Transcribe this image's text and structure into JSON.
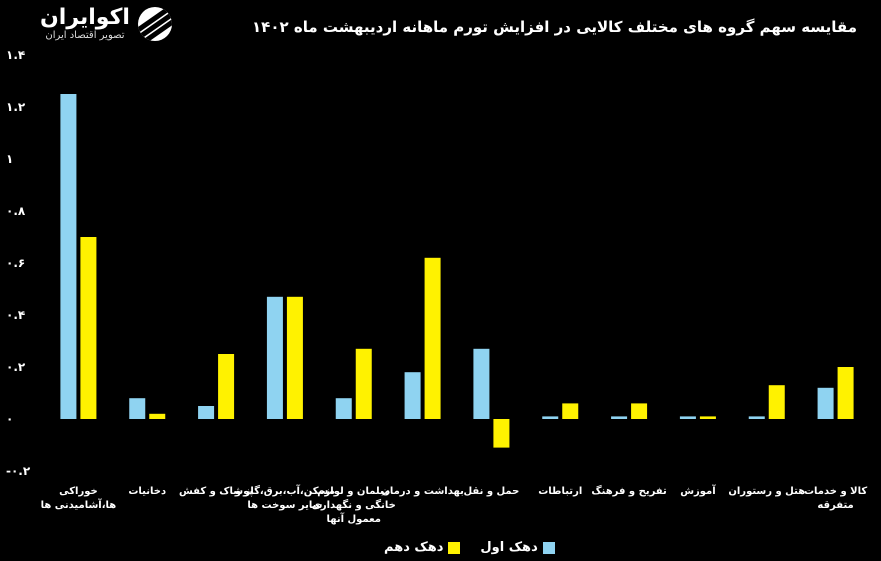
{
  "header": {
    "logo_name": "اکوایران",
    "logo_subtitle": "تصویر اقتصاد ایران",
    "logo_icon": "ecoiran-logo-icon"
  },
  "colors": {
    "series_1": "#8fd3f1",
    "series_2": "#fff200",
    "background": "#000000",
    "text": "#ffffff"
  },
  "chart_data": {
    "type": "bar",
    "title": "مقایسه سهم گروه های مختلف کالایی در افزایش تورم ماهانه اردیبهشت ماه ۱۴۰۲",
    "categories": [
      "خوراکی ها،آشامیدنی ها",
      "دخانیات",
      "پوشاک و کفش",
      "مسکن،آب،برق،گاز و سایر سوخت ها",
      "مبلمان و لوازم خانگی و نگهداری معمول آنها",
      "بهداشت و درمان",
      "حمل و نقل",
      "ارتباطات",
      "تفریح و فرهنگ",
      "آموزش",
      "هتل و رستوران",
      "کالا و خدمات متفرقه"
    ],
    "series": [
      {
        "name": "دهک اول",
        "values": [
          1.25,
          0.08,
          0.05,
          0.47,
          0.08,
          0.18,
          0.27,
          0.01,
          0.01,
          0.01,
          0.01,
          0.12
        ]
      },
      {
        "name": "دهک دهم",
        "values": [
          0.7,
          0.02,
          0.25,
          0.47,
          0.27,
          0.62,
          -0.11,
          0.06,
          0.06,
          0.01,
          0.13,
          0.2
        ]
      }
    ],
    "y_ticks": [
      "-۰.۲",
      "۰",
      "۰.۲",
      "۰.۴",
      "۰.۶",
      "۰.۸",
      "۱",
      "۱.۲",
      "۱.۴"
    ],
    "ylim": [
      -0.2,
      1.4
    ],
    "grid": false,
    "legend_position": "bottom-center"
  }
}
